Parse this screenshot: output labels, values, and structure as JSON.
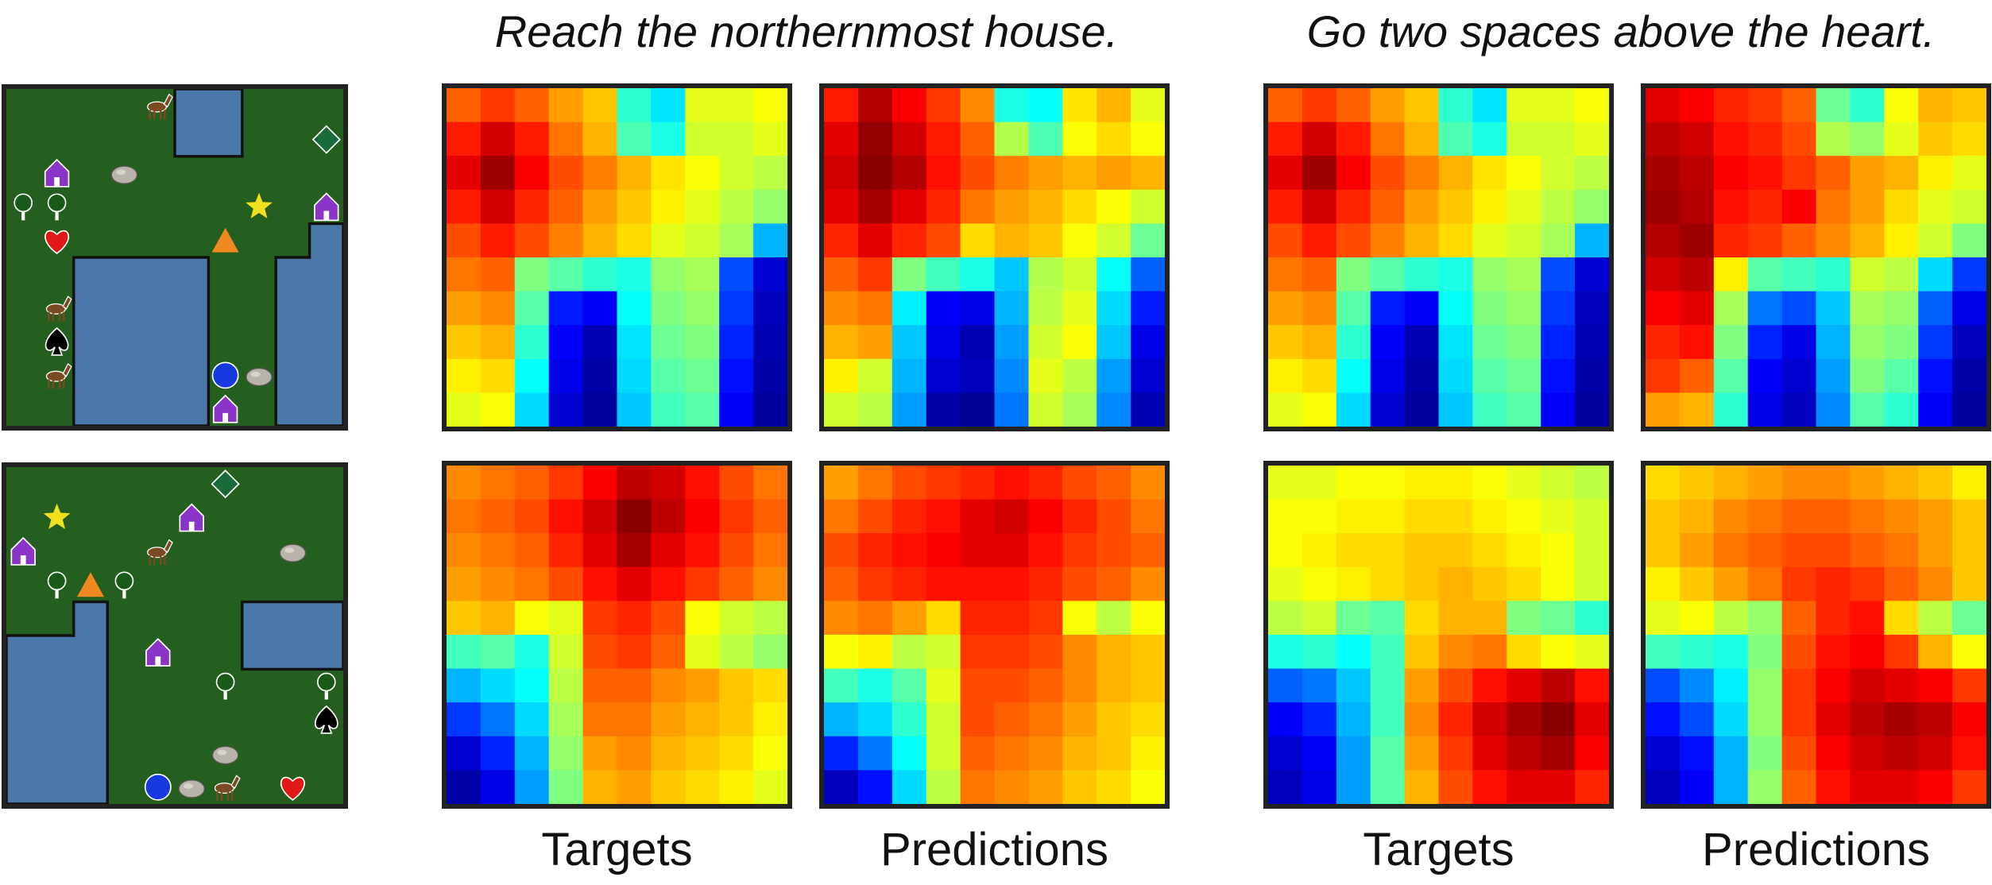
{
  "instructions": [
    "Reach the northernmost house.",
    "Go two spaces above the heart."
  ],
  "column_labels": [
    "Targets",
    "Predictions",
    "Targets",
    "Predictions"
  ],
  "colors": {
    "grass": "#1e5e1c",
    "water": "#4a78a8",
    "border": "#222222"
  },
  "maps": [
    {
      "objects": [
        {
          "type": "horse-icon",
          "row": 0,
          "col": 4
        },
        {
          "type": "diamond-icon",
          "row": 1,
          "col": 9,
          "color": "#1a6a3a"
        },
        {
          "type": "house-icon",
          "row": 2,
          "col": 1,
          "color": "#8a35c8"
        },
        {
          "type": "rock-icon",
          "row": 2,
          "col": 3
        },
        {
          "type": "tree-icon",
          "row": 3,
          "col": 0
        },
        {
          "type": "tree-icon",
          "row": 3,
          "col": 1
        },
        {
          "type": "star-icon",
          "row": 3,
          "col": 7,
          "color": "#f0e020"
        },
        {
          "type": "house-icon",
          "row": 3,
          "col": 9,
          "color": "#8a35c8"
        },
        {
          "type": "heart-icon",
          "row": 4,
          "col": 1,
          "color": "#e01818"
        },
        {
          "type": "triangle-icon",
          "row": 4,
          "col": 6,
          "color": "#f08a20"
        },
        {
          "type": "horse-icon",
          "row": 6,
          "col": 1
        },
        {
          "type": "spade-icon",
          "row": 7,
          "col": 1
        },
        {
          "type": "horse-icon",
          "row": 8,
          "col": 1
        },
        {
          "type": "circle-icon",
          "row": 8,
          "col": 6,
          "color": "#1838e0"
        },
        {
          "type": "rock-icon",
          "row": 8,
          "col": 7
        },
        {
          "type": "house-icon",
          "row": 9,
          "col": 6,
          "color": "#8a35c8"
        }
      ]
    },
    {
      "objects": [
        {
          "type": "diamond-icon",
          "row": 0,
          "col": 6,
          "color": "#1a6a3a"
        },
        {
          "type": "star-icon",
          "row": 1,
          "col": 1,
          "color": "#f0e020"
        },
        {
          "type": "house-icon",
          "row": 1,
          "col": 5,
          "color": "#8a35c8"
        },
        {
          "type": "house-icon",
          "row": 2,
          "col": 0,
          "color": "#8a35c8"
        },
        {
          "type": "horse-icon",
          "row": 2,
          "col": 4
        },
        {
          "type": "rock-icon",
          "row": 2,
          "col": 8
        },
        {
          "type": "tree-icon",
          "row": 3,
          "col": 1
        },
        {
          "type": "triangle-icon",
          "row": 3,
          "col": 2,
          "color": "#f08a20"
        },
        {
          "type": "tree-icon",
          "row": 3,
          "col": 3
        },
        {
          "type": "house-icon",
          "row": 5,
          "col": 4,
          "color": "#8a35c8"
        },
        {
          "type": "tree-icon",
          "row": 6,
          "col": 6
        },
        {
          "type": "tree-icon",
          "row": 6,
          "col": 9
        },
        {
          "type": "spade-icon",
          "row": 7,
          "col": 9
        },
        {
          "type": "rock-icon",
          "row": 8,
          "col": 6
        },
        {
          "type": "circle-icon",
          "row": 9,
          "col": 4,
          "color": "#1838e0"
        },
        {
          "type": "rock-icon",
          "row": 9,
          "col": 5
        },
        {
          "type": "horse-icon",
          "row": 9,
          "col": 6
        },
        {
          "type": "heart-icon",
          "row": 9,
          "col": 8,
          "color": "#e01818"
        }
      ]
    }
  ],
  "heatmaps": [
    [
      [
        0.78,
        0.82,
        0.78,
        0.72,
        0.68,
        0.42,
        0.35,
        0.6,
        0.6,
        0.62
      ],
      [
        0.85,
        0.92,
        0.85,
        0.76,
        0.7,
        0.45,
        0.4,
        0.58,
        0.58,
        0.6
      ],
      [
        0.9,
        0.97,
        0.88,
        0.8,
        0.75,
        0.7,
        0.65,
        0.62,
        0.58,
        0.56
      ],
      [
        0.85,
        0.92,
        0.84,
        0.78,
        0.72,
        0.68,
        0.64,
        0.6,
        0.56,
        0.52
      ],
      [
        0.8,
        0.85,
        0.8,
        0.75,
        0.7,
        0.66,
        0.6,
        0.58,
        0.54,
        0.3
      ],
      [
        0.76,
        0.78,
        0.5,
        0.46,
        0.42,
        0.4,
        0.52,
        0.54,
        0.2,
        0.08
      ],
      [
        0.72,
        0.74,
        0.46,
        0.15,
        0.12,
        0.38,
        0.5,
        0.52,
        0.18,
        0.06
      ],
      [
        0.68,
        0.7,
        0.42,
        0.12,
        0.05,
        0.35,
        0.48,
        0.5,
        0.16,
        0.05
      ],
      [
        0.64,
        0.66,
        0.38,
        0.1,
        0.04,
        0.34,
        0.46,
        0.48,
        0.14,
        0.04
      ],
      [
        0.6,
        0.62,
        0.34,
        0.08,
        0.03,
        0.32,
        0.44,
        0.46,
        0.12,
        0.03
      ]
    ],
    [
      [
        0.85,
        0.95,
        0.88,
        0.82,
        0.74,
        0.4,
        0.38,
        0.65,
        0.7,
        0.6
      ],
      [
        0.9,
        0.98,
        0.92,
        0.85,
        0.78,
        0.55,
        0.45,
        0.62,
        0.66,
        0.62
      ],
      [
        0.92,
        0.99,
        0.95,
        0.86,
        0.8,
        0.75,
        0.72,
        0.7,
        0.72,
        0.7
      ],
      [
        0.9,
        0.96,
        0.9,
        0.84,
        0.76,
        0.72,
        0.7,
        0.66,
        0.62,
        0.58
      ],
      [
        0.84,
        0.9,
        0.84,
        0.8,
        0.66,
        0.7,
        0.68,
        0.62,
        0.58,
        0.48
      ],
      [
        0.78,
        0.82,
        0.5,
        0.44,
        0.4,
        0.32,
        0.55,
        0.58,
        0.38,
        0.22
      ],
      [
        0.74,
        0.76,
        0.36,
        0.12,
        0.1,
        0.3,
        0.56,
        0.6,
        0.34,
        0.15
      ],
      [
        0.7,
        0.72,
        0.32,
        0.1,
        0.05,
        0.28,
        0.58,
        0.62,
        0.32,
        0.1
      ],
      [
        0.64,
        0.58,
        0.3,
        0.08,
        0.06,
        0.26,
        0.6,
        0.56,
        0.28,
        0.08
      ],
      [
        0.58,
        0.56,
        0.28,
        0.04,
        0.02,
        0.24,
        0.58,
        0.54,
        0.26,
        0.05
      ]
    ],
    [
      [
        0.78,
        0.82,
        0.78,
        0.72,
        0.68,
        0.42,
        0.35,
        0.6,
        0.6,
        0.62
      ],
      [
        0.85,
        0.92,
        0.85,
        0.76,
        0.7,
        0.45,
        0.4,
        0.58,
        0.58,
        0.6
      ],
      [
        0.9,
        0.97,
        0.88,
        0.8,
        0.75,
        0.7,
        0.65,
        0.62,
        0.58,
        0.56
      ],
      [
        0.85,
        0.92,
        0.84,
        0.78,
        0.72,
        0.68,
        0.64,
        0.6,
        0.56,
        0.52
      ],
      [
        0.8,
        0.85,
        0.8,
        0.75,
        0.7,
        0.66,
        0.6,
        0.58,
        0.54,
        0.3
      ],
      [
        0.76,
        0.78,
        0.5,
        0.46,
        0.42,
        0.4,
        0.52,
        0.54,
        0.2,
        0.08
      ],
      [
        0.72,
        0.74,
        0.46,
        0.15,
        0.12,
        0.38,
        0.5,
        0.52,
        0.18,
        0.06
      ],
      [
        0.68,
        0.7,
        0.42,
        0.12,
        0.05,
        0.35,
        0.48,
        0.5,
        0.16,
        0.05
      ],
      [
        0.64,
        0.66,
        0.38,
        0.1,
        0.04,
        0.34,
        0.46,
        0.48,
        0.14,
        0.04
      ],
      [
        0.6,
        0.62,
        0.34,
        0.08,
        0.03,
        0.32,
        0.44,
        0.46,
        0.12,
        0.03
      ]
    ],
    [
      [
        0.9,
        0.88,
        0.84,
        0.82,
        0.78,
        0.48,
        0.42,
        0.62,
        0.7,
        0.68
      ],
      [
        0.94,
        0.92,
        0.86,
        0.84,
        0.8,
        0.55,
        0.52,
        0.6,
        0.68,
        0.66
      ],
      [
        0.96,
        0.94,
        0.88,
        0.86,
        0.82,
        0.78,
        0.72,
        0.7,
        0.64,
        0.6
      ],
      [
        0.97,
        0.95,
        0.86,
        0.84,
        0.88,
        0.76,
        0.72,
        0.66,
        0.6,
        0.58
      ],
      [
        0.95,
        0.97,
        0.84,
        0.82,
        0.78,
        0.74,
        0.7,
        0.64,
        0.58,
        0.5
      ],
      [
        0.92,
        0.94,
        0.64,
        0.46,
        0.44,
        0.42,
        0.58,
        0.56,
        0.34,
        0.18
      ],
      [
        0.88,
        0.9,
        0.54,
        0.24,
        0.2,
        0.32,
        0.54,
        0.52,
        0.22,
        0.1
      ],
      [
        0.84,
        0.86,
        0.5,
        0.16,
        0.1,
        0.3,
        0.52,
        0.5,
        0.18,
        0.06
      ],
      [
        0.82,
        0.78,
        0.46,
        0.12,
        0.08,
        0.28,
        0.5,
        0.46,
        0.14,
        0.04
      ],
      [
        0.72,
        0.7,
        0.42,
        0.1,
        0.06,
        0.26,
        0.46,
        0.42,
        0.12,
        0.03
      ]
    ],
    [
      [
        0.74,
        0.76,
        0.78,
        0.82,
        0.88,
        0.94,
        0.92,
        0.86,
        0.8,
        0.76
      ],
      [
        0.76,
        0.78,
        0.8,
        0.86,
        0.92,
        0.99,
        0.94,
        0.88,
        0.82,
        0.78
      ],
      [
        0.74,
        0.76,
        0.78,
        0.84,
        0.9,
        0.96,
        0.9,
        0.86,
        0.8,
        0.76
      ],
      [
        0.72,
        0.74,
        0.76,
        0.8,
        0.86,
        0.9,
        0.86,
        0.82,
        0.78,
        0.74
      ],
      [
        0.68,
        0.7,
        0.62,
        0.6,
        0.82,
        0.84,
        0.8,
        0.62,
        0.58,
        0.56
      ],
      [
        0.44,
        0.46,
        0.4,
        0.58,
        0.8,
        0.82,
        0.78,
        0.6,
        0.56,
        0.52
      ],
      [
        0.3,
        0.34,
        0.38,
        0.56,
        0.78,
        0.78,
        0.74,
        0.72,
        0.68,
        0.66
      ],
      [
        0.18,
        0.24,
        0.34,
        0.54,
        0.76,
        0.76,
        0.72,
        0.7,
        0.68,
        0.64
      ],
      [
        0.08,
        0.16,
        0.3,
        0.52,
        0.72,
        0.74,
        0.7,
        0.68,
        0.66,
        0.62
      ],
      [
        0.04,
        0.1,
        0.28,
        0.5,
        0.7,
        0.72,
        0.68,
        0.66,
        0.64,
        0.6
      ]
    ],
    [
      [
        0.72,
        0.76,
        0.8,
        0.82,
        0.84,
        0.86,
        0.84,
        0.8,
        0.78,
        0.74
      ],
      [
        0.76,
        0.8,
        0.84,
        0.86,
        0.9,
        0.92,
        0.88,
        0.84,
        0.8,
        0.76
      ],
      [
        0.8,
        0.84,
        0.86,
        0.88,
        0.9,
        0.9,
        0.86,
        0.82,
        0.8,
        0.78
      ],
      [
        0.78,
        0.82,
        0.84,
        0.86,
        0.86,
        0.86,
        0.84,
        0.8,
        0.78,
        0.74
      ],
      [
        0.74,
        0.76,
        0.72,
        0.66,
        0.84,
        0.84,
        0.82,
        0.62,
        0.56,
        0.62
      ],
      [
        0.62,
        0.64,
        0.56,
        0.58,
        0.82,
        0.82,
        0.8,
        0.74,
        0.7,
        0.68
      ],
      [
        0.44,
        0.4,
        0.46,
        0.6,
        0.8,
        0.8,
        0.78,
        0.74,
        0.7,
        0.68
      ],
      [
        0.3,
        0.34,
        0.42,
        0.58,
        0.8,
        0.78,
        0.76,
        0.72,
        0.68,
        0.66
      ],
      [
        0.16,
        0.24,
        0.38,
        0.58,
        0.78,
        0.76,
        0.74,
        0.7,
        0.68,
        0.64
      ],
      [
        0.06,
        0.14,
        0.34,
        0.56,
        0.76,
        0.74,
        0.72,
        0.68,
        0.66,
        0.62
      ]
    ],
    [
      [
        0.6,
        0.6,
        0.62,
        0.62,
        0.64,
        0.64,
        0.62,
        0.6,
        0.58,
        0.56
      ],
      [
        0.62,
        0.62,
        0.64,
        0.64,
        0.66,
        0.66,
        0.64,
        0.62,
        0.6,
        0.58
      ],
      [
        0.62,
        0.64,
        0.66,
        0.66,
        0.68,
        0.68,
        0.66,
        0.64,
        0.62,
        0.58
      ],
      [
        0.6,
        0.62,
        0.64,
        0.66,
        0.68,
        0.7,
        0.68,
        0.66,
        0.62,
        0.58
      ],
      [
        0.56,
        0.58,
        0.48,
        0.46,
        0.66,
        0.7,
        0.7,
        0.5,
        0.48,
        0.42
      ],
      [
        0.4,
        0.42,
        0.38,
        0.44,
        0.68,
        0.74,
        0.76,
        0.66,
        0.62,
        0.6
      ],
      [
        0.22,
        0.24,
        0.32,
        0.44,
        0.72,
        0.8,
        0.86,
        0.9,
        0.94,
        0.86
      ],
      [
        0.12,
        0.16,
        0.3,
        0.44,
        0.74,
        0.84,
        0.92,
        0.96,
        0.99,
        0.9
      ],
      [
        0.08,
        0.12,
        0.28,
        0.46,
        0.72,
        0.82,
        0.9,
        0.94,
        0.96,
        0.88
      ],
      [
        0.06,
        0.1,
        0.28,
        0.46,
        0.7,
        0.8,
        0.86,
        0.9,
        0.9,
        0.84
      ]
    ],
    [
      [
        0.66,
        0.68,
        0.7,
        0.72,
        0.74,
        0.74,
        0.72,
        0.7,
        0.68,
        0.64
      ],
      [
        0.68,
        0.7,
        0.74,
        0.76,
        0.78,
        0.78,
        0.76,
        0.74,
        0.72,
        0.68
      ],
      [
        0.68,
        0.72,
        0.76,
        0.78,
        0.8,
        0.8,
        0.78,
        0.76,
        0.72,
        0.68
      ],
      [
        0.64,
        0.68,
        0.72,
        0.76,
        0.82,
        0.84,
        0.82,
        0.78,
        0.74,
        0.68
      ],
      [
        0.6,
        0.62,
        0.56,
        0.52,
        0.78,
        0.84,
        0.86,
        0.66,
        0.56,
        0.48
      ],
      [
        0.44,
        0.42,
        0.4,
        0.5,
        0.8,
        0.86,
        0.88,
        0.82,
        0.7,
        0.62
      ],
      [
        0.2,
        0.26,
        0.36,
        0.52,
        0.82,
        0.88,
        0.92,
        0.9,
        0.88,
        0.82
      ],
      [
        0.14,
        0.2,
        0.34,
        0.52,
        0.82,
        0.9,
        0.94,
        0.96,
        0.94,
        0.88
      ],
      [
        0.08,
        0.14,
        0.3,
        0.5,
        0.8,
        0.88,
        0.92,
        0.94,
        0.92,
        0.86
      ],
      [
        0.06,
        0.12,
        0.3,
        0.52,
        0.78,
        0.86,
        0.9,
        0.9,
        0.88,
        0.82
      ]
    ]
  ]
}
